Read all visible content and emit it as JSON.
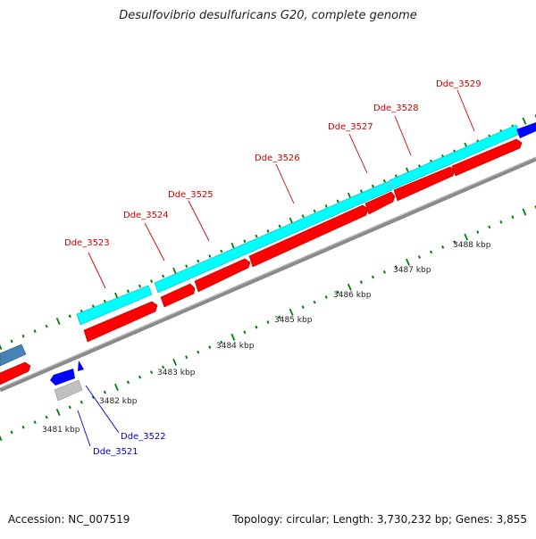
{
  "title": "Desulfovibrio desulfuricans G20, complete genome",
  "accession": "Accession: NC_007519",
  "summary": "Topology: circular; Length: 3,730,232 bp; Genes: 3,855",
  "colors": {
    "cds_red": "#ff0000",
    "rna_cyan": "#00ffff",
    "blue_gene": "#0000ff",
    "steelblue_gene": "#4682b4",
    "grey_gene": "#c0c0c0",
    "backbone": "#808080",
    "tick_green": "#008000",
    "label_red": "#cc0000",
    "label_blue": "#0000cc"
  },
  "scale_ticks": [
    {
      "label": "3481 kbp",
      "kbp": 3481
    },
    {
      "label": "3482 kbp",
      "kbp": 3482
    },
    {
      "label": "3483 kbp",
      "kbp": 3483
    },
    {
      "label": "3484 kbp",
      "kbp": 3484
    },
    {
      "label": "3485 kbp",
      "kbp": 3485
    },
    {
      "label": "3486 kbp",
      "kbp": 3486
    },
    {
      "label": "3487 kbp",
      "kbp": 3487
    },
    {
      "label": "3488 kbp",
      "kbp": 3488
    }
  ],
  "gene_labels": [
    {
      "label": "Dde_3521",
      "color": "blue"
    },
    {
      "label": "Dde_3522",
      "color": "blue"
    },
    {
      "label": "Dde_3523",
      "color": "red"
    },
    {
      "label": "Dde_3524",
      "color": "red"
    },
    {
      "label": "Dde_3525",
      "color": "red"
    },
    {
      "label": "Dde_3526",
      "color": "red"
    },
    {
      "label": "Dde_3527",
      "color": "red"
    },
    {
      "label": "Dde_3528",
      "color": "red"
    },
    {
      "label": "Dde_3529",
      "color": "red"
    }
  ]
}
